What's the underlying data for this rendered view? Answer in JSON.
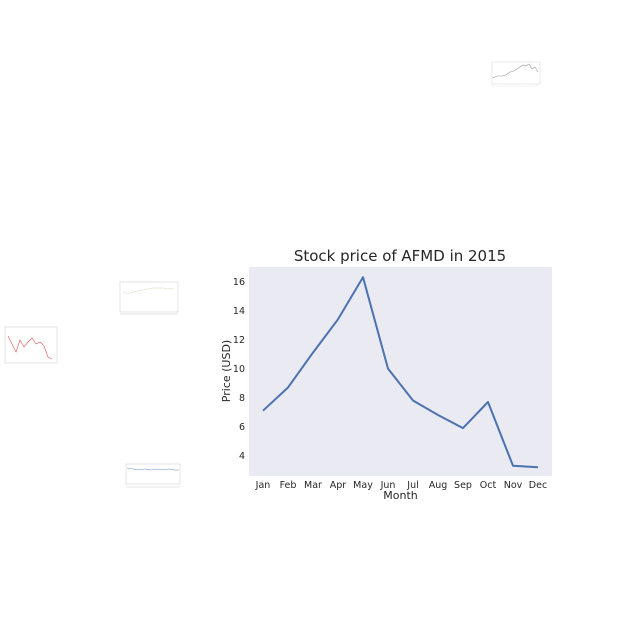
{
  "chart_data": [
    {
      "type": "line",
      "title": "Stock price of AFMD in 2015",
      "xlabel": "Month",
      "ylabel": "Price (USD)",
      "categories": [
        "Jan",
        "Feb",
        "Mar",
        "Apr",
        "May",
        "Jun",
        "Jul",
        "Aug",
        "Sep",
        "Oct",
        "Nov",
        "Dec"
      ],
      "series": [
        {
          "values": [
            7.1,
            8.7,
            11.1,
            13.4,
            16.3,
            10.0,
            7.8,
            6.8,
            5.9,
            7.7,
            3.3,
            3.2
          ]
        }
      ],
      "yticks": [
        4,
        6,
        8,
        10,
        12,
        14,
        16
      ],
      "ylim": [
        2.6,
        17.0
      ],
      "grid": false,
      "background": "#eaeaf2",
      "line_color": "#4c72b0"
    }
  ]
}
